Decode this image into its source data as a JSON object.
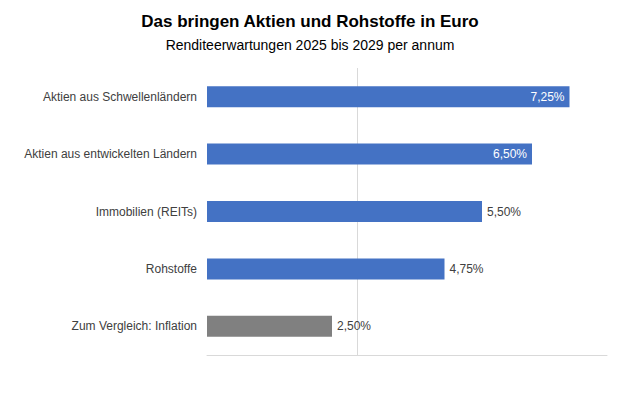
{
  "chart_data": {
    "type": "bar",
    "orientation": "horizontal",
    "title": "Das bringen Aktien und Rohstoffe in Euro",
    "subtitle": "Renditeerwartungen 2025 bis 2029 per annum",
    "categories": [
      "Aktien aus Schwellenländern",
      "Aktien aus entwickelten Ländern",
      "Immobilien (REITs)",
      "Rohstoffe",
      "Zum Vergleich: Inflation"
    ],
    "values": [
      7.25,
      6.5,
      5.5,
      4.75,
      2.5
    ],
    "value_labels": [
      "7,25%",
      "6,50%",
      "5,50%",
      "4,75%",
      "2,50%"
    ],
    "colors": [
      "#4472c4",
      "#4472c4",
      "#4472c4",
      "#4472c4",
      "#808080"
    ],
    "xlim": [
      0,
      8
    ],
    "xticks": [
      3
    ],
    "grid": true,
    "data_labels": true,
    "tick_labels": "y"
  }
}
